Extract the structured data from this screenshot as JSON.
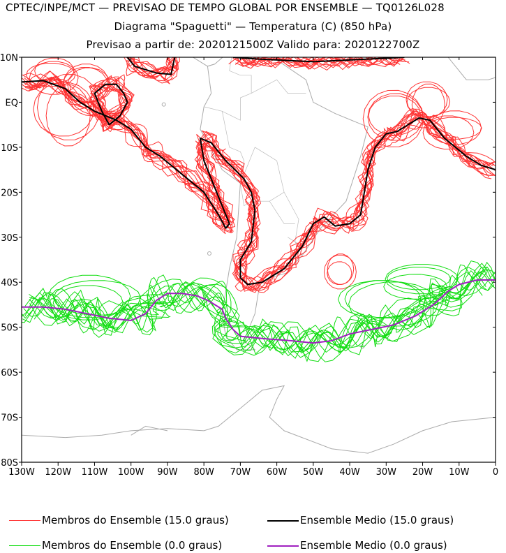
{
  "header": {
    "line1": "CPTEC/INPE/MCT — PREVISAO DE TEMPO GLOBAL POR ENSEMBLE — TQ0126L028",
    "line2": "Diagrama \"Spaguetti\" — Temperatura (C) (850 hPa)",
    "line3": "Previsao a partir de: 2020121500Z  Valido para: 2020122700Z"
  },
  "legend": {
    "members_15": "Membros do Ensemble (15.0 graus)",
    "mean_15": "Ensemble Medio (15.0 graus)",
    "members_0": "Membros do Ensemble (0.0 graus)",
    "mean_0": "Ensemble Medio (0.0 graus)"
  },
  "colors": {
    "members_15": "#ff3333",
    "mean_15": "#000000",
    "members_0": "#11dd11",
    "mean_0": "#a020c0",
    "land": "#aaaaaa"
  },
  "chart_data": {
    "type": "line",
    "map_projection": "cylindrical lon-lat",
    "xlim": [
      -130,
      0
    ],
    "ylim": [
      -80,
      10
    ],
    "x_ticks": [
      -130,
      -120,
      -110,
      -100,
      -90,
      -80,
      -70,
      -60,
      -50,
      -40,
      -30,
      -20,
      -10,
      0
    ],
    "x_tick_labels": [
      "130W",
      "120W",
      "110W",
      "100W",
      "90W",
      "80W",
      "70W",
      "60W",
      "50W",
      "40W",
      "30W",
      "20W",
      "10W",
      "0"
    ],
    "y_ticks": [
      10,
      0,
      -10,
      -20,
      -30,
      -40,
      -50,
      -60,
      -70,
      -80
    ],
    "y_tick_labels": [
      "10N",
      "EQ",
      "10S",
      "20S",
      "30S",
      "40S",
      "50S",
      "60S",
      "70S",
      "80S"
    ],
    "series": [
      {
        "name": "Ensemble Medio (15.0 graus)",
        "color": "#000000",
        "segments": [
          [
            [
              -130,
              4.5
            ],
            [
              -124,
              4.8
            ],
            [
              -118,
              3
            ],
            [
              -114,
              0
            ],
            [
              -110,
              -2
            ],
            [
              -104,
              -4
            ],
            [
              -100,
              -6
            ],
            [
              -98,
              -8
            ],
            [
              -96,
              -10
            ],
            [
              -92,
              -12
            ],
            [
              -86,
              -16
            ],
            [
              -80,
              -20
            ],
            [
              -76,
              -25
            ],
            [
              -74,
              -28
            ],
            [
              -73,
              -27
            ],
            [
              -76,
              -21
            ],
            [
              -80,
              -13
            ],
            [
              -81,
              -8
            ],
            [
              -78,
              -9
            ],
            [
              -74,
              -13
            ],
            [
              -69,
              -17
            ],
            [
              -67,
              -20
            ],
            [
              -66,
              -24
            ],
            [
              -67,
              -31
            ],
            [
              -70,
              -35
            ],
            [
              -70,
              -39
            ],
            [
              -68,
              -40.5
            ],
            [
              -64,
              -40
            ],
            [
              -58,
              -37
            ],
            [
              -53,
              -32
            ],
            [
              -50,
              -27
            ],
            [
              -47,
              -25.5
            ],
            [
              -44,
              -27.5
            ],
            [
              -40,
              -27
            ],
            [
              -37,
              -25
            ],
            [
              -36,
              -20
            ],
            [
              -35,
              -15
            ],
            [
              -33,
              -10
            ],
            [
              -30,
              -7
            ],
            [
              -27,
              -6.5
            ],
            [
              -24,
              -5
            ],
            [
              -21,
              -3.5
            ],
            [
              -18,
              -4
            ],
            [
              -14,
              -8
            ],
            [
              -8,
              -12
            ],
            [
              -4,
              -14
            ],
            [
              0,
              -15
            ]
          ],
          [
            [
              -106,
              -5
            ],
            [
              -103,
              -3
            ],
            [
              -101,
              0
            ],
            [
              -102,
              2
            ],
            [
              -104,
              4
            ],
            [
              -107,
              4
            ],
            [
              -110,
              2
            ],
            [
              -108,
              -2
            ],
            [
              -106,
              -5
            ]
          ],
          [
            [
              -101,
              10
            ],
            [
              -99,
              8
            ],
            [
              -93,
              6.5
            ],
            [
              -89,
              6.2
            ],
            [
              -88,
              10
            ]
          ],
          [
            [
              -72,
              10
            ],
            [
              -65,
              9.6
            ],
            [
              -50,
              9
            ],
            [
              -35,
              9.6
            ],
            [
              -25,
              10
            ]
          ]
        ]
      },
      {
        "name": "Ensemble Medio (0.0 graus)",
        "color": "#a020c0",
        "segments": [
          [
            [
              -130,
              -45.5
            ],
            [
              -124,
              -45.5
            ],
            [
              -118,
              -46
            ],
            [
              -112,
              -47
            ],
            [
              -106,
              -48
            ],
            [
              -100,
              -48.5
            ],
            [
              -96,
              -47
            ],
            [
              -93,
              -44
            ],
            [
              -90,
              -42.5
            ],
            [
              -86,
              -42.5
            ],
            [
              -82,
              -43
            ],
            [
              -79,
              -44
            ],
            [
              -77,
              -45
            ],
            [
              -75,
              -46
            ],
            [
              -74,
              -48
            ],
            [
              -72,
              -50.5
            ],
            [
              -70,
              -52
            ],
            [
              -64,
              -52.5
            ],
            [
              -56,
              -53
            ],
            [
              -50,
              -53.5
            ],
            [
              -45,
              -53
            ],
            [
              -40,
              -51.5
            ],
            [
              -34,
              -50.5
            ],
            [
              -28,
              -49.5
            ],
            [
              -22,
              -47.5
            ],
            [
              -17,
              -45
            ],
            [
              -13,
              -42
            ],
            [
              -10,
              -40.5
            ],
            [
              -5,
              -39.5
            ],
            [
              0,
              -39.5
            ]
          ]
        ]
      }
    ],
    "member_series": [
      {
        "name": "Membros do Ensemble (15.0 graus)",
        "color": "#ff3333"
      },
      {
        "name": "Membros do Ensemble (0.0 graus)",
        "color": "#11dd11"
      }
    ]
  }
}
